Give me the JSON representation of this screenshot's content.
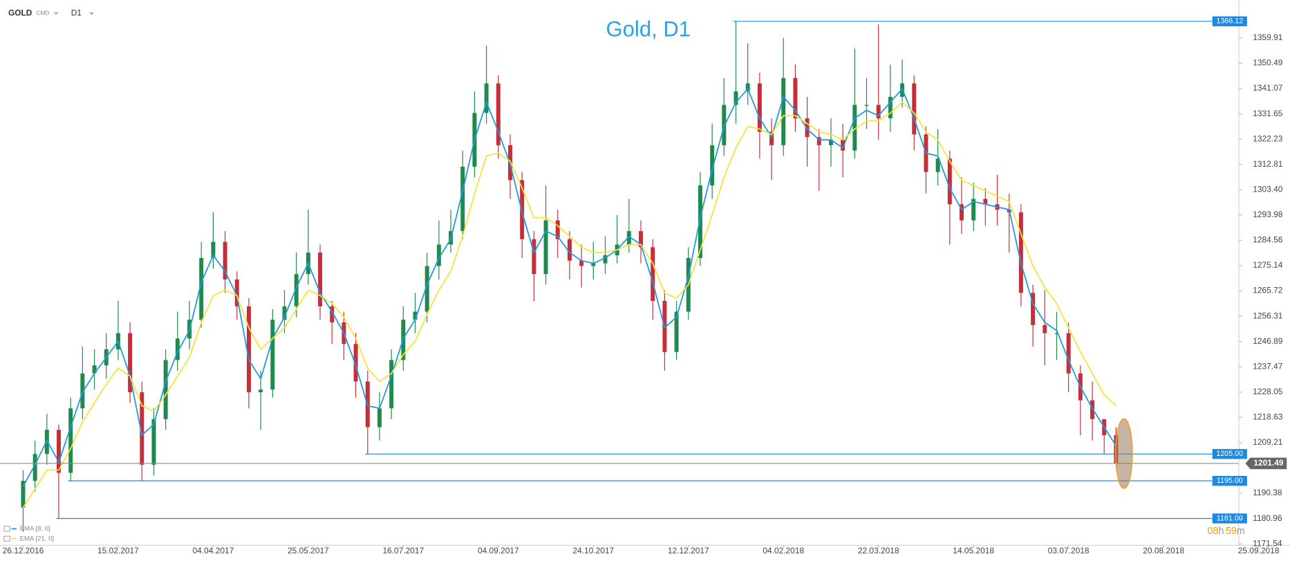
{
  "chart_data": {
    "type": "candlestick",
    "symbol": "GOLD",
    "market": "CMD",
    "timeframe": "D1",
    "title": "Gold, D1",
    "up_color": "#1f8a4c",
    "down_color": "#c62f3a",
    "categories": [
      "26.12.2016",
      null,
      null,
      null,
      null,
      null,
      null,
      null,
      "15.02.2017",
      null,
      null,
      null,
      null,
      null,
      null,
      null,
      "04.04.2017",
      null,
      null,
      null,
      null,
      null,
      null,
      null,
      "25.05.2017",
      null,
      null,
      null,
      null,
      null,
      null,
      null,
      "16.07.2017",
      null,
      null,
      null,
      null,
      null,
      null,
      null,
      "04.09.2017",
      null,
      null,
      null,
      null,
      null,
      null,
      null,
      "24.10.2017",
      null,
      null,
      null,
      null,
      null,
      null,
      null,
      "12.12.2017",
      null,
      null,
      null,
      null,
      null,
      null,
      null,
      "04.02.2018",
      null,
      null,
      null,
      null,
      null,
      null,
      null,
      "22.03.2018",
      null,
      null,
      null,
      null,
      null,
      null,
      null,
      "14.05.2018",
      null,
      null,
      null,
      null,
      null,
      null,
      null,
      "03.07.2018",
      null,
      null,
      null,
      null,
      null,
      null,
      null,
      "20.08.2018",
      null,
      null,
      null,
      null,
      null,
      null,
      null,
      "25.09.2018"
    ],
    "open": [
      1185,
      1195,
      1205,
      1214,
      1198,
      1222,
      1235,
      1238,
      1244,
      1250,
      1228,
      1201,
      1218,
      1240,
      1248,
      1255,
      1278,
      1284,
      1270,
      1260,
      1228,
      1229,
      1255,
      1260,
      1272,
      1280,
      1260,
      1254,
      1246,
      1232,
      1215,
      1222,
      1240,
      1255,
      1258,
      1275,
      1283,
      1288,
      1312,
      1332,
      1343,
      1320,
      1307,
      1285,
      1272,
      1292,
      1285,
      1277,
      1275,
      1276,
      1279,
      1283,
      1288,
      1282,
      1262,
      1243,
      1258,
      1278,
      1305,
      1320,
      1335,
      1340,
      1343,
      1325,
      1320,
      1345,
      1330,
      1323,
      1320,
      1322,
      1318,
      1335,
      1335,
      1330,
      1338,
      1343,
      1324,
      1310,
      1315,
      1298,
      1292,
      1300,
      1298,
      1296,
      1295,
      1265,
      1253,
      1250,
      1250,
      1235,
      1225,
      1218,
      1212,
      null,
      null,
      null,
      null,
      null,
      null,
      null,
      null,
      null,
      null,
      null,
      null
    ],
    "high": [
      1199,
      1210,
      1220,
      1216,
      1226,
      1245,
      1244,
      1250,
      1262,
      1254,
      1232,
      1222,
      1244,
      1258,
      1262,
      1284,
      1295,
      1288,
      1273,
      1263,
      1236,
      1259,
      1266,
      1280,
      1296,
      1283,
      1262,
      1258,
      1250,
      1236,
      1228,
      1244,
      1260,
      1265,
      1280,
      1292,
      1296,
      1318,
      1340,
      1357,
      1346,
      1324,
      1310,
      1288,
      1305,
      1296,
      1288,
      1283,
      1284,
      1286,
      1294,
      1300,
      1292,
      1285,
      1266,
      1262,
      1282,
      1310,
      1328,
      1345,
      1366.12,
      1358,
      1347,
      1330,
      1360,
      1350,
      1338,
      1326,
      1330,
      1328,
      1356,
      1345,
      1365,
      1350,
      1352,
      1346,
      1327,
      1326,
      1318,
      1308,
      1306,
      1304,
      1309,
      1302,
      1298,
      1268,
      1266,
      1258,
      1254,
      1238,
      1232,
      1218,
      1215,
      null,
      null,
      null,
      null,
      null,
      null,
      null,
      null,
      null,
      null,
      null,
      null
    ],
    "low": [
      1176,
      1191,
      1201,
      1181,
      1195,
      1218,
      1229,
      1233,
      1240,
      1224,
      1195,
      1197,
      1214,
      1236,
      1244,
      1252,
      1274,
      1265,
      1255,
      1222,
      1214,
      1226,
      1250,
      1256,
      1268,
      1255,
      1246,
      1240,
      1226,
      1205,
      1210,
      1218,
      1236,
      1250,
      1254,
      1270,
      1280,
      1285,
      1308,
      1328,
      1315,
      1300,
      1278,
      1262,
      1268,
      1278,
      1270,
      1267,
      1270,
      1272,
      1276,
      1280,
      1276,
      1255,
      1236,
      1240,
      1255,
      1275,
      1300,
      1316,
      1328,
      1335,
      1315,
      1307,
      1316,
      1325,
      1312,
      1303,
      1312,
      1308,
      1315,
      1326,
      1322,
      1325,
      1334,
      1318,
      1302,
      1305,
      1283,
      1287,
      1288,
      1290,
      1290,
      1280,
      1260,
      1245,
      1238,
      1240,
      1228,
      1212,
      1210,
      1205,
      1201,
      null,
      null,
      null,
      null,
      null,
      null,
      null,
      null,
      null,
      null,
      null,
      null
    ],
    "close": [
      1195,
      1205,
      1214,
      1198,
      1222,
      1235,
      1238,
      1244,
      1250,
      1228,
      1201,
      1218,
      1240,
      1248,
      1255,
      1278,
      1284,
      1270,
      1260,
      1228,
      1229,
      1255,
      1260,
      1272,
      1280,
      1260,
      1254,
      1246,
      1232,
      1215,
      1222,
      1240,
      1255,
      1258,
      1275,
      1283,
      1288,
      1312,
      1332,
      1343,
      1320,
      1307,
      1285,
      1272,
      1292,
      1285,
      1277,
      1275,
      1276,
      1279,
      1283,
      1288,
      1282,
      1262,
      1243,
      1258,
      1278,
      1305,
      1320,
      1335,
      1340,
      1343,
      1325,
      1320,
      1345,
      1330,
      1323,
      1320,
      1322,
      1318,
      1335,
      1335,
      1330,
      1338,
      1343,
      1324,
      1310,
      1315,
      1298,
      1292,
      1300,
      1298,
      1296,
      1295,
      1265,
      1253,
      1250,
      1250,
      1235,
      1225,
      1218,
      1212,
      1201.49,
      null,
      null,
      null,
      null,
      null,
      null,
      null,
      null,
      null,
      null,
      null,
      null
    ],
    "series": [
      {
        "name": "EMA [8, 0]",
        "color": "#1e9be0",
        "values": [
          1193,
          1201,
          1210,
          1202,
          1215,
          1228,
          1235,
          1241,
          1247,
          1234,
          1212,
          1216,
          1232,
          1243,
          1251,
          1269,
          1279,
          1273,
          1264,
          1240,
          1233,
          1248,
          1256,
          1267,
          1276,
          1265,
          1258,
          1250,
          1238,
          1223,
          1222,
          1234,
          1248,
          1255,
          1268,
          1278,
          1285,
          1303,
          1322,
          1336,
          1325,
          1313,
          1295,
          1280,
          1288,
          1286,
          1280,
          1277,
          1276,
          1278,
          1281,
          1286,
          1283,
          1269,
          1252,
          1256,
          1271,
          1293,
          1311,
          1327,
          1336,
          1341,
          1330,
          1323,
          1338,
          1333,
          1326,
          1322,
          1322,
          1319,
          1330,
          1333,
          1331,
          1336,
          1341,
          1330,
          1317,
          1316,
          1304,
          1296,
          1299,
          1298,
          1297,
          1296,
          1276,
          1261,
          1254,
          1251,
          1240,
          1230,
          1222,
          1215,
          1208,
          null,
          null,
          null,
          null,
          null,
          null,
          null,
          null,
          null,
          null,
          null,
          null
        ]
      },
      {
        "name": "EMA [21, 0]",
        "color": "#f7e23b",
        "values": [
          1185,
          1192,
          1199,
          1199,
          1207,
          1217,
          1224,
          1231,
          1237,
          1234,
          1223,
          1221,
          1227,
          1234,
          1241,
          1254,
          1264,
          1266,
          1264,
          1252,
          1244,
          1248,
          1252,
          1259,
          1266,
          1264,
          1261,
          1256,
          1248,
          1237,
          1232,
          1235,
          1242,
          1247,
          1257,
          1266,
          1273,
          1286,
          1302,
          1316,
          1317,
          1314,
          1304,
          1293,
          1293,
          1290,
          1286,
          1282,
          1280,
          1280,
          1281,
          1283,
          1283,
          1276,
          1265,
          1263,
          1268,
          1281,
          1294,
          1308,
          1319,
          1327,
          1326,
          1324,
          1331,
          1331,
          1328,
          1325,
          1324,
          1322,
          1326,
          1329,
          1329,
          1332,
          1336,
          1332,
          1325,
          1322,
          1314,
          1307,
          1305,
          1303,
          1301,
          1299,
          1287,
          1275,
          1267,
          1261,
          1252,
          1243,
          1235,
          1227,
          1223,
          null,
          null,
          null,
          null,
          null,
          null,
          null,
          null,
          null,
          null,
          null,
          null
        ]
      }
    ],
    "ylim": [
      1171,
      1371.6
    ],
    "yticks": [
      1359.91,
      1350.49,
      1341.07,
      1331.65,
      1322.23,
      1312.81,
      {
        "value": 1303.4,
        "label": "1303.40"
      },
      1293.98,
      1284.56,
      1275.14,
      1265.72,
      1256.31,
      1246.89,
      1237.47,
      1228.05,
      1218.63,
      1209.21,
      1190.38,
      1180.96,
      1171.54
    ],
    "levels": {
      "color": "#1e88e5",
      "values": [
        1366.12,
        1205,
        1195,
        1181
      ],
      "value_labels": [
        "1366.12",
        "1205.00",
        "1195.00",
        "1181.00"
      ]
    },
    "last_price": 1201.49,
    "countdown": [
      "08",
      "h",
      "59",
      "m"
    ]
  }
}
